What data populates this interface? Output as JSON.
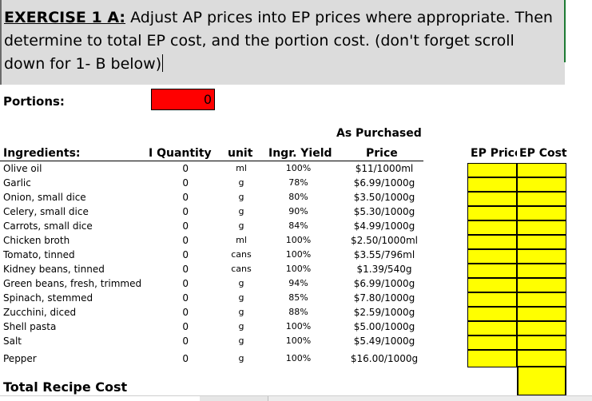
{
  "exercise": {
    "title_bold": "EXERCISE 1 A:",
    "text_line1": " Adjust AP prices into EP prices where appropriate.  Then",
    "text_line2": "determine to total EP cost, and the portion cost. (don't forget scroll",
    "text_line3": "down for 1- B below)"
  },
  "portions": {
    "label": "Portions:",
    "value": "0"
  },
  "headers": {
    "ingredients": "Ingredients:",
    "quantity": "I Quantity",
    "unit": "unit",
    "yield": "Ingr. Yield",
    "ap_top": "As Purchased",
    "ap_bottom": "Price",
    "ep_price": "EP Price",
    "ep_cost": "EP Cost"
  },
  "rows": [
    {
      "name": "Olive oil",
      "qty": "0",
      "unit": "ml",
      "yield": "100%",
      "price": "$11/1000ml"
    },
    {
      "name": "Garlic",
      "qty": "0",
      "unit": "g",
      "yield": "78%",
      "price": "$6.99/1000g"
    },
    {
      "name": "Onion, small dice",
      "qty": "0",
      "unit": "g",
      "yield": "80%",
      "price": "$3.50/1000g"
    },
    {
      "name": "Celery, small dice",
      "qty": "0",
      "unit": "g",
      "yield": "90%",
      "price": "$5.30/1000g"
    },
    {
      "name": "Carrots, small dice",
      "qty": "0",
      "unit": "g",
      "yield": "84%",
      "price": "$4.99/1000g"
    },
    {
      "name": "Chicken broth",
      "qty": "0",
      "unit": "ml",
      "yield": "100%",
      "price": "$2.50/1000ml"
    },
    {
      "name": "Tomato, tinned",
      "qty": "0",
      "unit": "cans",
      "yield": "100%",
      "price": "$3.55/796ml"
    },
    {
      "name": "Kidney beans, tinned",
      "qty": "0",
      "unit": "cans",
      "yield": "100%",
      "price": "$1.39/540g"
    },
    {
      "name": "Green beans, fresh, trimmed",
      "qty": "0",
      "unit": "g",
      "yield": "94%",
      "price": "$6.99/1000g"
    },
    {
      "name": "Spinach, stemmed",
      "qty": "0",
      "unit": "g",
      "yield": "85%",
      "price": "$7.80/1000g"
    },
    {
      "name": "Zucchini, diced",
      "qty": "0",
      "unit": "g",
      "yield": "88%",
      "price": "$2.59/1000g"
    },
    {
      "name": "Shell pasta",
      "qty": "0",
      "unit": "g",
      "yield": "100%",
      "price": "$5.00/1000g"
    },
    {
      "name": "Salt",
      "qty": "0",
      "unit": "g",
      "yield": "100%",
      "price": "$5.49/1000g"
    },
    {
      "name": "Pepper",
      "qty": "0",
      "unit": "g",
      "yield": "100%",
      "price": "$16.00/1000g"
    }
  ],
  "total": {
    "label": "Total Recipe Cost"
  },
  "colors": {
    "input_red": "#ff0000",
    "ep_yellow": "#ffff00",
    "banner_gray": "#dcdcdc"
  }
}
